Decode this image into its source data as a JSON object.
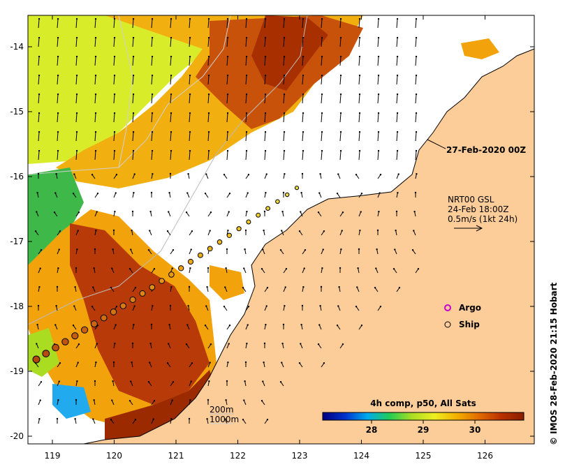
{
  "map": {
    "x_ticks": [
      "119",
      "120",
      "121",
      "122",
      "123",
      "124",
      "125",
      "126"
    ],
    "y_ticks": [
      "-14",
      "-15",
      "-16",
      "-17",
      "-18",
      "-19",
      "-20"
    ],
    "colors": {
      "land": "#fccc99",
      "sea_no_data": "#ffffff",
      "sst_warm": "#b83a08",
      "sst_mid": "#f2a30c",
      "sst_cool": "#d9ec2a",
      "sst_cold": "#3fb84a",
      "track_old": "#b84a10",
      "track_new": "#f2e64a"
    }
  },
  "date_label": "27-Feb-2020 00Z",
  "current_key": {
    "line1": "NRT00 GSL",
    "line2": "24-Feb 18:00Z",
    "line3": "0.5m/s (1kt 24h)"
  },
  "legend": {
    "argo_label": "Argo",
    "ship_label": "Ship"
  },
  "isobaths": {
    "deep_label": "200m",
    "shallow_label": "1000m"
  },
  "colorbar": {
    "title": "4h comp, p50, All Sats",
    "tick_labels": [
      "28",
      "29",
      "30"
    ],
    "stops": [
      "#00007f",
      "#0033cc",
      "#00aaee",
      "#22cc55",
      "#aadd22",
      "#eeee22",
      "#f2b000",
      "#e26a00",
      "#b83000",
      "#8a1f00"
    ]
  },
  "credit": "© IMOS 28-Feb-2020 21:15 Hobart"
}
